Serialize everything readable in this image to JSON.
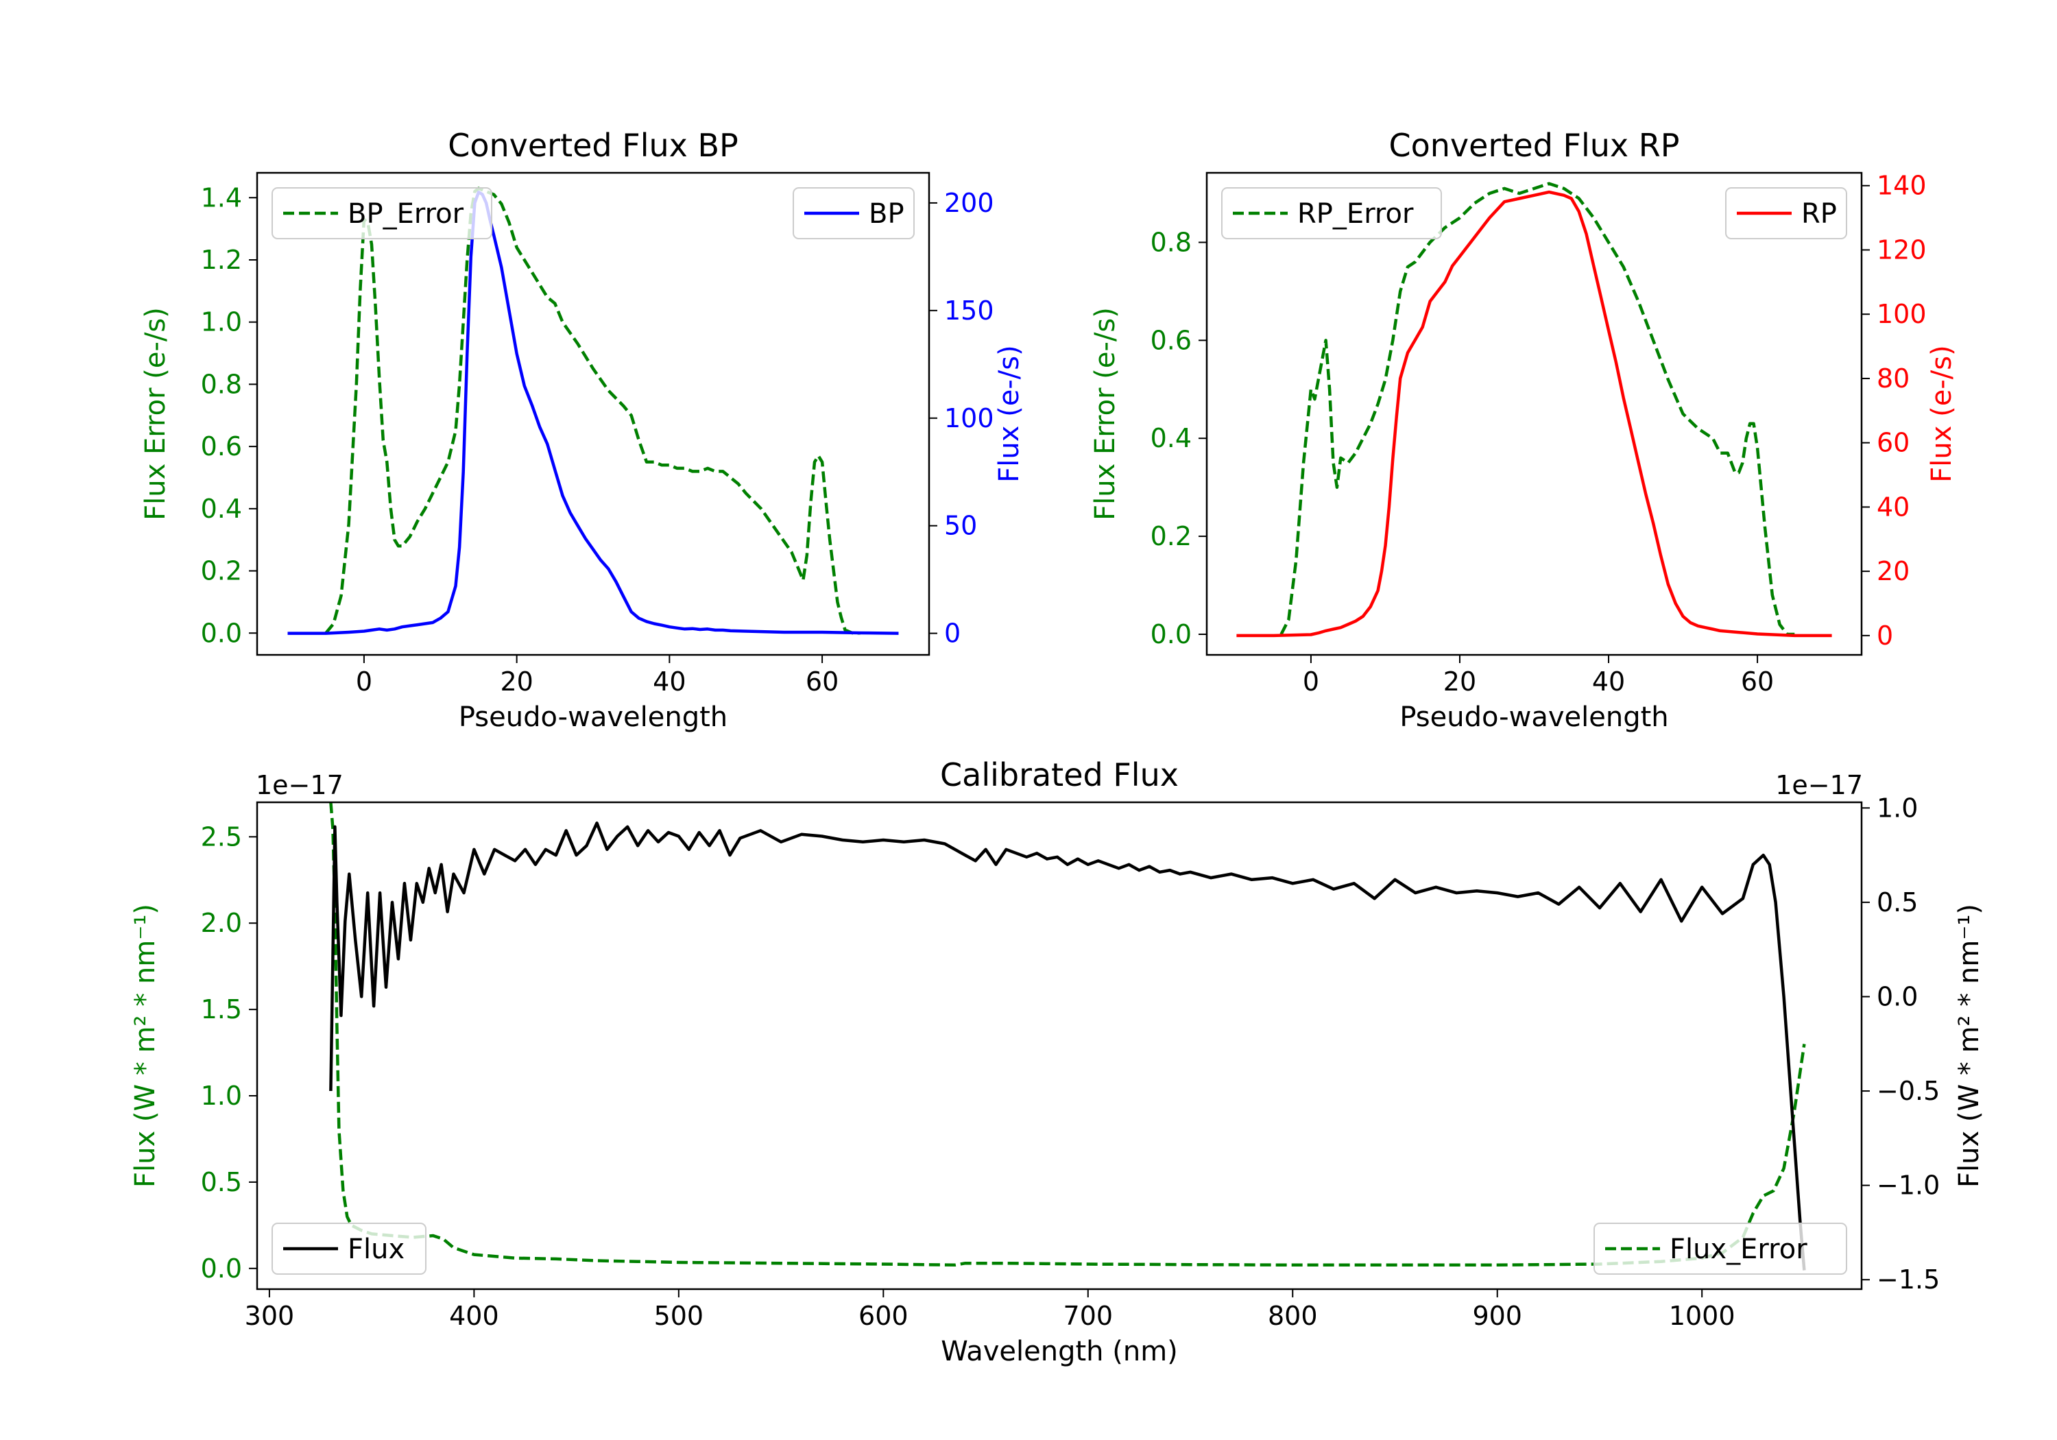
{
  "chart_data": [
    {
      "type": "line",
      "title": "Converted Flux BP",
      "xlabel": "Pseudo-wavelength",
      "xlim": [
        -14,
        74
      ],
      "xticks": [
        0,
        20,
        40,
        60
      ],
      "left_axis": {
        "label": "Flux Error (e-/s)",
        "color": "#008000",
        "ylim": [
          -0.07,
          1.48
        ],
        "ticks": [
          "0.0",
          "0.2",
          "0.4",
          "0.6",
          "0.8",
          "1.0",
          "1.2",
          "1.4"
        ]
      },
      "right_axis": {
        "label": "Flux (e-/s)",
        "color": "#0000ff",
        "ylim": [
          -10,
          214
        ],
        "ticks": [
          "0",
          "50",
          "100",
          "150",
          "200"
        ]
      },
      "legend_left": "top-left",
      "legend_right": "top-right",
      "series": [
        {
          "name": "BP_Error",
          "axis": "left",
          "style": "dashed",
          "color": "#008000",
          "x": [
            -5,
            -4,
            -3,
            -2,
            -1,
            -0.5,
            0,
            0.5,
            1,
            1.5,
            2,
            2.5,
            3,
            3.5,
            4,
            4.5,
            5,
            6,
            7,
            8,
            9,
            10,
            11,
            12,
            12.5,
            13,
            13.5,
            14,
            14.5,
            15,
            16,
            17,
            18,
            19,
            20,
            22,
            24,
            25,
            26,
            28,
            30,
            32,
            34,
            35,
            36,
            37,
            38,
            39,
            40,
            41,
            42,
            43,
            44,
            45,
            46,
            47,
            48,
            49,
            50,
            52,
            54,
            56,
            57,
            57.5,
            58,
            58.5,
            59,
            59.5,
            60,
            60.5,
            61,
            61.5,
            62,
            62.5,
            63,
            64,
            65
          ],
          "y": [
            0.0,
            0.03,
            0.12,
            0.35,
            0.8,
            1.1,
            1.33,
            1.32,
            1.25,
            1.05,
            0.82,
            0.62,
            0.55,
            0.4,
            0.3,
            0.28,
            0.28,
            0.31,
            0.36,
            0.4,
            0.45,
            0.5,
            0.55,
            0.65,
            0.8,
            1.0,
            1.2,
            1.35,
            1.42,
            1.43,
            1.42,
            1.41,
            1.38,
            1.32,
            1.24,
            1.16,
            1.08,
            1.06,
            1.0,
            0.93,
            0.85,
            0.78,
            0.73,
            0.7,
            0.62,
            0.55,
            0.55,
            0.54,
            0.54,
            0.53,
            0.53,
            0.52,
            0.52,
            0.53,
            0.52,
            0.52,
            0.5,
            0.48,
            0.45,
            0.4,
            0.33,
            0.26,
            0.2,
            0.17,
            0.25,
            0.42,
            0.55,
            0.57,
            0.55,
            0.42,
            0.3,
            0.2,
            0.1,
            0.05,
            0.01,
            0.0,
            0.0
          ]
        },
        {
          "name": "BP",
          "axis": "right",
          "style": "solid",
          "color": "#0000ff",
          "x": [
            -10,
            -5,
            -2,
            0,
            1,
            2,
            3,
            4,
            5,
            6,
            7,
            8,
            9,
            10,
            11,
            12,
            12.5,
            13,
            13.5,
            14,
            14.5,
            15,
            15.5,
            16,
            16.5,
            17,
            18,
            19,
            20,
            21,
            22,
            23,
            24,
            25,
            26,
            27,
            28,
            29,
            30,
            31,
            32,
            33,
            34,
            35,
            36,
            37,
            38,
            39,
            40,
            41,
            42,
            43,
            44,
            45,
            46,
            47,
            48,
            50,
            55,
            60,
            65,
            70
          ],
          "y": [
            0,
            0,
            0.5,
            1,
            1.5,
            2,
            1.5,
            2,
            3,
            3.5,
            4,
            4.5,
            5,
            7,
            10,
            22,
            40,
            75,
            130,
            175,
            200,
            205,
            204,
            200,
            192,
            185,
            170,
            150,
            130,
            115,
            106,
            96,
            88,
            76,
            64,
            56,
            50,
            44,
            39,
            34,
            30,
            24,
            17,
            10,
            7,
            5.5,
            4.5,
            3.8,
            3,
            2.5,
            2,
            2.2,
            1.8,
            2,
            1.5,
            1.5,
            1.2,
            1,
            0.5,
            0.5,
            0.2,
            0
          ]
        }
      ]
    },
    {
      "type": "line",
      "title": "Converted Flux RP",
      "xlabel": "Pseudo-wavelength",
      "xlim": [
        -14,
        74
      ],
      "xticks": [
        0,
        20,
        40,
        60
      ],
      "left_axis": {
        "label": "Flux Error (e-/s)",
        "color": "#008000",
        "ylim": [
          -0.042,
          0.942
        ],
        "ticks": [
          "0.0",
          "0.2",
          "0.4",
          "0.6",
          "0.8"
        ]
      },
      "right_axis": {
        "label": "Flux (e-/s)",
        "color": "#ff0000",
        "ylim": [
          -6,
          144
        ],
        "ticks": [
          "0",
          "20",
          "40",
          "60",
          "80",
          "100",
          "120",
          "140"
        ]
      },
      "legend_left": "top-left",
      "legend_right": "top-right",
      "series": [
        {
          "name": "RP_Error",
          "axis": "left",
          "style": "dashed",
          "color": "#008000",
          "x": [
            -4,
            -3,
            -2,
            -1,
            0,
            0.5,
            1,
            1.5,
            2,
            2.5,
            3,
            3.5,
            4,
            5,
            6,
            7,
            8,
            9,
            10,
            11,
            12,
            13,
            14,
            16,
            18,
            20,
            22,
            24,
            26,
            28,
            30,
            32,
            34,
            36,
            38,
            40,
            42,
            44,
            46,
            48,
            50,
            52,
            54,
            55,
            56,
            57,
            57.5,
            58,
            58.5,
            59,
            59.5,
            60,
            61,
            62,
            63,
            64,
            65
          ],
          "y": [
            0.0,
            0.03,
            0.15,
            0.35,
            0.5,
            0.48,
            0.52,
            0.56,
            0.6,
            0.5,
            0.35,
            0.3,
            0.36,
            0.35,
            0.37,
            0.4,
            0.43,
            0.47,
            0.52,
            0.6,
            0.7,
            0.75,
            0.76,
            0.8,
            0.83,
            0.85,
            0.88,
            0.9,
            0.91,
            0.9,
            0.91,
            0.92,
            0.91,
            0.89,
            0.85,
            0.8,
            0.75,
            0.68,
            0.6,
            0.52,
            0.45,
            0.42,
            0.4,
            0.37,
            0.37,
            0.33,
            0.33,
            0.35,
            0.4,
            0.43,
            0.43,
            0.38,
            0.22,
            0.08,
            0.02,
            0.0,
            0.0
          ]
        },
        {
          "name": "RP",
          "axis": "right",
          "style": "solid",
          "color": "#ff0000",
          "x": [
            -10,
            -5,
            0,
            1,
            2,
            3,
            4,
            5,
            6,
            7,
            8,
            9,
            9.5,
            10,
            10.5,
            11,
            11.5,
            12,
            13,
            14,
            15,
            16,
            17,
            18,
            19,
            20,
            22,
            24,
            26,
            28,
            30,
            32,
            34,
            35,
            36,
            37,
            38,
            39,
            40,
            41,
            42,
            43,
            44,
            45,
            46,
            47,
            48,
            49,
            50,
            51,
            52,
            53,
            54,
            55,
            60,
            65,
            70
          ],
          "y": [
            0,
            0,
            0.3,
            0.8,
            1.5,
            2,
            2.5,
            3.5,
            4.5,
            6,
            9,
            14,
            20,
            28,
            40,
            55,
            68,
            80,
            88,
            92,
            96,
            104,
            107,
            110,
            115,
            118,
            124,
            130,
            135,
            136,
            137,
            138,
            137,
            136,
            132,
            125,
            115,
            105,
            95,
            85,
            74,
            64,
            54,
            44,
            35,
            25,
            16,
            10,
            6,
            4,
            3,
            2.5,
            2,
            1.5,
            0.5,
            0,
            0
          ]
        }
      ]
    },
    {
      "type": "line",
      "title": "Calibrated Flux",
      "xlabel": "Wavelength (nm)",
      "xlim": [
        294,
        1078
      ],
      "xticks": [
        300,
        400,
        500,
        600,
        700,
        800,
        900,
        1000
      ],
      "left_axis": {
        "label": "Flux (W * m² * nm⁻¹)",
        "color": "#008000",
        "offset": "1e−17",
        "ylim": [
          -0.12,
          2.7
        ],
        "ticks": [
          "0.0",
          "0.5",
          "1.0",
          "1.5",
          "2.0",
          "2.5"
        ]
      },
      "right_axis": {
        "label": "Flux (W * m² * nm⁻¹)",
        "color": "#000000",
        "offset": "1e−17",
        "ylim": [
          -1.55,
          1.03
        ],
        "ticks": [
          "−1.5",
          "−1.0",
          "−0.5",
          "0.0",
          "0.5",
          "1.0"
        ]
      },
      "legend_left": "bottom-left",
      "legend_right": "bottom-right",
      "series": [
        {
          "name": "Flux_Error",
          "axis": "left",
          "style": "dashed",
          "color": "#008000",
          "x": [
            330,
            331,
            332,
            333,
            334,
            336,
            338,
            340,
            345,
            350,
            360,
            370,
            380,
            385,
            390,
            395,
            400,
            420,
            440,
            460,
            480,
            500,
            550,
            600,
            635,
            640,
            660,
            700,
            750,
            800,
            850,
            900,
            950,
            980,
            1000,
            1010,
            1020,
            1025,
            1030,
            1035,
            1040,
            1045,
            1050
          ],
          "y": [
            2.7,
            2.55,
            2.1,
            1.4,
            0.8,
            0.45,
            0.3,
            0.25,
            0.22,
            0.2,
            0.19,
            0.18,
            0.19,
            0.17,
            0.12,
            0.1,
            0.08,
            0.06,
            0.055,
            0.045,
            0.04,
            0.035,
            0.03,
            0.025,
            0.02,
            0.03,
            0.03,
            0.025,
            0.022,
            0.02,
            0.02,
            0.02,
            0.025,
            0.04,
            0.06,
            0.09,
            0.18,
            0.32,
            0.42,
            0.45,
            0.58,
            0.9,
            1.3
          ]
        },
        {
          "name": "Flux",
          "axis": "right",
          "style": "solid",
          "color": "#000000",
          "x": [
            330,
            331,
            332,
            333,
            335,
            337,
            339,
            342,
            345,
            348,
            351,
            354,
            357,
            360,
            363,
            366,
            369,
            372,
            375,
            378,
            381,
            384,
            387,
            390,
            395,
            400,
            405,
            410,
            415,
            420,
            425,
            430,
            435,
            440,
            445,
            450,
            455,
            460,
            465,
            470,
            475,
            480,
            485,
            490,
            495,
            500,
            505,
            510,
            515,
            520,
            525,
            530,
            540,
            550,
            560,
            570,
            580,
            590,
            600,
            610,
            620,
            630,
            640,
            645,
            650,
            655,
            660,
            665,
            670,
            675,
            680,
            685,
            690,
            695,
            700,
            705,
            710,
            715,
            720,
            725,
            730,
            735,
            740,
            745,
            750,
            760,
            770,
            780,
            790,
            800,
            810,
            820,
            830,
            840,
            850,
            860,
            870,
            880,
            890,
            900,
            910,
            920,
            930,
            940,
            950,
            960,
            970,
            980,
            990,
            1000,
            1010,
            1020,
            1025,
            1030,
            1033,
            1036,
            1040,
            1044,
            1048,
            1050
          ],
          "y": [
            -0.5,
            0.2,
            0.9,
            0.5,
            -0.1,
            0.4,
            0.65,
            0.3,
            0.0,
            0.55,
            -0.05,
            0.55,
            0.05,
            0.5,
            0.2,
            0.6,
            0.3,
            0.6,
            0.5,
            0.68,
            0.55,
            0.7,
            0.45,
            0.65,
            0.55,
            0.78,
            0.65,
            0.78,
            0.75,
            0.72,
            0.78,
            0.7,
            0.78,
            0.75,
            0.88,
            0.75,
            0.8,
            0.92,
            0.78,
            0.85,
            0.9,
            0.8,
            0.88,
            0.82,
            0.87,
            0.85,
            0.78,
            0.87,
            0.8,
            0.88,
            0.75,
            0.84,
            0.88,
            0.82,
            0.86,
            0.85,
            0.83,
            0.82,
            0.83,
            0.82,
            0.83,
            0.81,
            0.75,
            0.72,
            0.78,
            0.7,
            0.78,
            0.76,
            0.74,
            0.76,
            0.73,
            0.74,
            0.7,
            0.73,
            0.7,
            0.72,
            0.7,
            0.68,
            0.7,
            0.67,
            0.69,
            0.66,
            0.67,
            0.65,
            0.66,
            0.63,
            0.65,
            0.62,
            0.63,
            0.6,
            0.62,
            0.57,
            0.6,
            0.52,
            0.62,
            0.55,
            0.58,
            0.55,
            0.56,
            0.55,
            0.53,
            0.55,
            0.49,
            0.58,
            0.47,
            0.6,
            0.45,
            0.62,
            0.4,
            0.58,
            0.44,
            0.52,
            0.7,
            0.75,
            0.7,
            0.5,
            0.0,
            -0.6,
            -1.2,
            -1.45
          ]
        }
      ]
    }
  ]
}
